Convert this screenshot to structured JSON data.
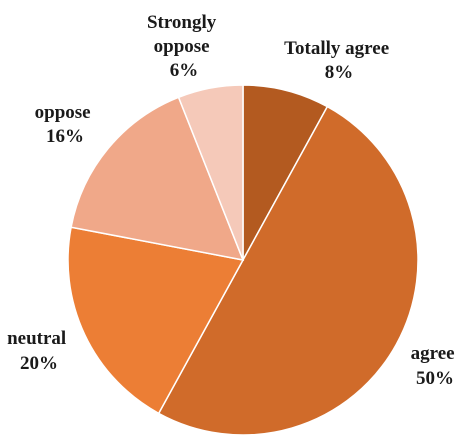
{
  "chart_data": {
    "type": "pie",
    "title": "",
    "slices": [
      {
        "label": "Totally agree",
        "value": 8,
        "display": "8%",
        "color": "#B35A20"
      },
      {
        "label": "agree",
        "value": 50,
        "display": "50%",
        "color": "#D06B2A"
      },
      {
        "label": "neutral",
        "value": 20,
        "display": "20%",
        "color": "#EC7E35"
      },
      {
        "label": "oppose",
        "value": 16,
        "display": "16%",
        "color": "#F0A889"
      },
      {
        "label": "Strongly oppose",
        "value": 6,
        "display": "6%",
        "color": "#F5C9B9"
      }
    ],
    "legend": "none",
    "labels_position": "outside"
  }
}
